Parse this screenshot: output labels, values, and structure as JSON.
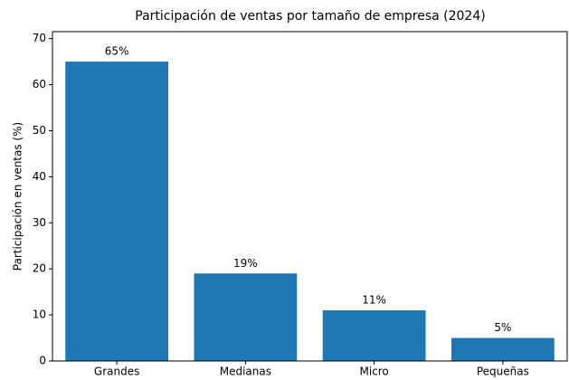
{
  "chart_data": {
    "type": "bar",
    "title": "Participación de ventas por tamaño de empresa (2024)",
    "ylabel": "Participación en ventas (%)",
    "categories": [
      "Grandes",
      "Medianas",
      "Micro",
      "Pequeñas"
    ],
    "values": [
      65,
      19,
      11,
      5
    ],
    "value_labels": [
      "65%",
      "19%",
      "11%",
      "5%"
    ],
    "color": "#1f77b4",
    "ylim": [
      0,
      71.5
    ],
    "yticks": [
      0,
      10,
      20,
      30,
      40,
      50,
      60,
      70
    ],
    "grid": false
  }
}
